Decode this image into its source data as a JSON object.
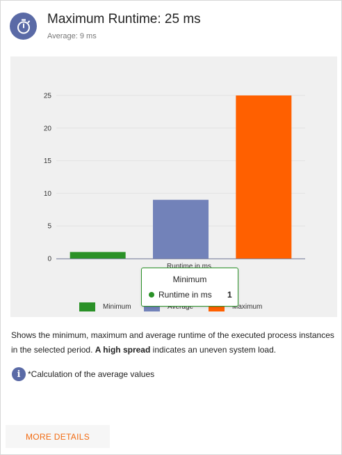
{
  "header": {
    "title": "Maximum Runtime: 25 ms",
    "subtitle": "Average: 9 ms",
    "icon": "stopwatch-icon"
  },
  "chart_data": {
    "type": "bar",
    "categories": [
      "Minimum",
      "Average*",
      "Maximum"
    ],
    "series": [
      {
        "name": "Runtime in ms",
        "values": [
          1,
          9,
          25
        ]
      }
    ],
    "colors": [
      "#2a9127",
      "#7282b9",
      "#ff6000"
    ],
    "xlabel": "Runtime in ms",
    "ylim": [
      0,
      25
    ],
    "yticks": [
      "0",
      "5",
      "10",
      "15",
      "20",
      "25"
    ],
    "grid": true,
    "legend": "bottom"
  },
  "tooltip": {
    "title": "Minimum",
    "series_label": "Runtime in ms",
    "value": "1"
  },
  "description": {
    "text_before": "Shows the minimum, maximum and average runtime of the executed process instances in the selected period. ",
    "bold": "A high spread",
    "text_after": " indicates an uneven system load."
  },
  "info": {
    "icon": "info-icon",
    "icon_glyph": "i",
    "text": "*Calculation of the average values"
  },
  "footer": {
    "more_label": "MORE DETAILS"
  }
}
